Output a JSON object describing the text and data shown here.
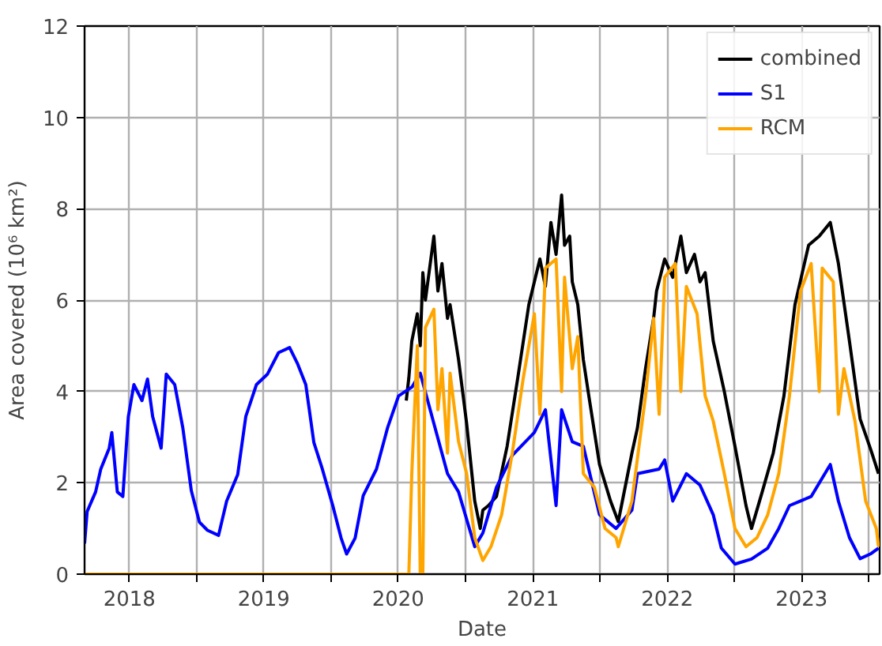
{
  "chart_data": {
    "type": "line",
    "xlabel": "Date",
    "ylabel": "Area covered (10⁶ km²)",
    "xlim": [
      "2017-09-01",
      "2023-08-01"
    ],
    "ylim": [
      0,
      12
    ],
    "yticks": [
      0,
      2,
      4,
      6,
      8,
      10,
      12
    ],
    "xticks": [
      "2018",
      {
        "value": "2018-07",
        "label": null
      },
      "2019",
      {
        "value": "2019-07",
        "label": null
      },
      "2020",
      {
        "value": "2020-07",
        "label": null
      },
      "2021",
      {
        "value": "2021-07",
        "label": null
      },
      "2022",
      {
        "value": "2022-07",
        "label": null
      },
      "2023",
      {
        "value": "2023-07",
        "label": null
      }
    ],
    "grid": true,
    "legend": "top right",
    "line_style": "solid",
    "marker": "none",
    "series": [
      {
        "name": "combined",
        "color": "#000000",
        "x": [
          "2020-01-23",
          "2020-01-30",
          "2020-02-07",
          "2020-02-22",
          "2020-03-01",
          "2020-03-08",
          "2020-03-15",
          "2020-04-07",
          "2020-04-18",
          "2020-04-29",
          "2020-05-14",
          "2020-05-21",
          "2020-06-13",
          "2020-07-05",
          "2020-07-27",
          "2020-08-11",
          "2020-08-18",
          "2020-09-02",
          "2020-09-24",
          "2020-10-23",
          "2020-11-21",
          "2020-12-21",
          "2021-01-05",
          "2021-01-20",
          "2021-02-04",
          "2021-02-19",
          "2021-03-05",
          "2021-03-20",
          "2021-03-28",
          "2021-04-11",
          "2021-04-18",
          "2021-05-03",
          "2021-05-18",
          "2021-06-02",
          "2021-07-01",
          "2021-07-31",
          "2021-08-21",
          "2021-09-27",
          "2021-10-12",
          "2021-11-03",
          "2021-11-25",
          "2021-12-03",
          "2021-12-25",
          "2022-01-16",
          "2022-02-07",
          "2022-02-22",
          "2022-03-16",
          "2022-03-31",
          "2022-04-14",
          "2022-05-06",
          "2022-06-05",
          "2022-07-04",
          "2022-08-03",
          "2022-08-18",
          "2022-09-16",
          "2022-10-16",
          "2022-11-14",
          "2022-12-14",
          "2023-01-20",
          "2023-02-18",
          "2023-03-20",
          "2023-04-11",
          "2023-05-11",
          "2023-06-09",
          "2023-07-09",
          "2023-07-29"
        ],
        "values": [
          3.8,
          4.3,
          5.1,
          5.7,
          5.0,
          6.6,
          6.0,
          7.4,
          6.2,
          6.8,
          5.6,
          5.9,
          4.7,
          3.3,
          1.6,
          1.0,
          1.4,
          1.5,
          1.7,
          2.8,
          4.3,
          5.9,
          6.4,
          6.9,
          6.3,
          7.7,
          7.0,
          8.3,
          7.2,
          7.4,
          6.4,
          5.9,
          4.7,
          3.9,
          2.4,
          1.6,
          1.15,
          2.65,
          3.2,
          4.5,
          5.6,
          6.2,
          6.9,
          6.5,
          7.4,
          6.6,
          7.0,
          6.4,
          6.6,
          5.1,
          4.0,
          2.8,
          1.5,
          1.0,
          1.8,
          2.65,
          3.9,
          5.9,
          7.2,
          7.4,
          7.7,
          6.8,
          5.1,
          3.4,
          2.7,
          2.2
        ]
      },
      {
        "name": "S1",
        "color": "#0000ff",
        "x": [
          "2017-09-01",
          "2017-09-08",
          "2017-10-01",
          "2017-10-15",
          "2017-11-07",
          "2017-11-14",
          "2017-11-29",
          "2017-12-14",
          "2017-12-29",
          "2018-01-13",
          "2018-02-04",
          "2018-02-19",
          "2018-03-05",
          "2018-03-28",
          "2018-04-11",
          "2018-05-04",
          "2018-05-26",
          "2018-06-18",
          "2018-07-10",
          "2018-08-01",
          "2018-08-31",
          "2018-09-22",
          "2018-10-22",
          "2018-11-13",
          "2018-12-12",
          "2019-01-11",
          "2019-02-10",
          "2019-03-12",
          "2019-04-03",
          "2019-04-25",
          "2019-05-17",
          "2019-06-09",
          "2019-07-08",
          "2019-07-30",
          "2019-08-14",
          "2019-09-06",
          "2019-09-28",
          "2019-11-03",
          "2019-12-03",
          "2020-01-02",
          "2020-02-08",
          "2020-03-01",
          "2020-04-07",
          "2020-05-14",
          "2020-06-13",
          "2020-07-27",
          "2020-08-18",
          "2020-09-24",
          "2020-11-06",
          "2021-01-05",
          "2021-02-04",
          "2021-03-05",
          "2021-03-20",
          "2021-04-18",
          "2021-05-18",
          "2021-07-01",
          "2021-08-15",
          "2021-09-27",
          "2021-10-12",
          "2021-12-10",
          "2021-12-25",
          "2022-01-16",
          "2022-02-22",
          "2022-03-31",
          "2022-05-06",
          "2022-05-28",
          "2022-07-04",
          "2022-08-18",
          "2022-10-01",
          "2022-10-31",
          "2022-11-29",
          "2023-01-27",
          "2023-03-20",
          "2023-04-11",
          "2023-05-11",
          "2023-06-09",
          "2023-07-09",
          "2023-07-29"
        ],
        "values": [
          0.67,
          1.37,
          1.8,
          2.3,
          2.76,
          3.1,
          1.8,
          1.7,
          3.45,
          4.15,
          3.8,
          4.27,
          3.45,
          2.76,
          4.38,
          4.15,
          3.2,
          1.83,
          1.14,
          0.96,
          0.85,
          1.6,
          2.18,
          3.45,
          4.15,
          4.38,
          4.85,
          4.96,
          4.6,
          4.15,
          2.88,
          2.3,
          1.48,
          0.79,
          0.44,
          0.79,
          1.72,
          2.3,
          3.2,
          3.9,
          4.1,
          4.4,
          3.3,
          2.2,
          1.8,
          0.6,
          0.9,
          1.9,
          2.6,
          3.1,
          3.6,
          1.5,
          3.6,
          2.9,
          2.8,
          1.3,
          1.0,
          1.4,
          2.2,
          2.3,
          2.5,
          1.6,
          2.2,
          1.95,
          1.3,
          0.57,
          0.22,
          0.33,
          0.57,
          1.0,
          1.5,
          1.7,
          2.4,
          1.6,
          0.8,
          0.34,
          0.45,
          0.57
        ]
      },
      {
        "name": "RCM",
        "color": "#ffa500",
        "x": [
          "2017-09-01",
          "2020-01-30",
          "2020-02-07",
          "2020-02-22",
          "2020-03-01",
          "2020-03-08",
          "2020-03-15",
          "2020-04-07",
          "2020-04-18",
          "2020-04-29",
          "2020-05-14",
          "2020-05-21",
          "2020-06-13",
          "2020-07-05",
          "2020-07-27",
          "2020-08-18",
          "2020-09-09",
          "2020-10-08",
          "2020-11-06",
          "2020-12-06",
          "2021-01-05",
          "2021-01-20",
          "2021-02-04",
          "2021-03-05",
          "2021-03-20",
          "2021-03-28",
          "2021-04-18",
          "2021-05-03",
          "2021-05-18",
          "2021-06-17",
          "2021-07-16",
          "2021-08-15",
          "2021-08-21",
          "2021-09-27",
          "2021-11-03",
          "2021-11-25",
          "2021-12-10",
          "2021-12-25",
          "2022-01-23",
          "2022-02-07",
          "2022-02-22",
          "2022-03-23",
          "2022-04-14",
          "2022-05-06",
          "2022-06-05",
          "2022-07-04",
          "2022-08-03",
          "2022-09-02",
          "2022-10-01",
          "2022-10-31",
          "2022-11-29",
          "2022-12-29",
          "2023-01-27",
          "2023-02-18",
          "2023-02-26",
          "2023-03-28",
          "2023-04-11",
          "2023-04-26",
          "2023-05-26",
          "2023-06-24",
          "2023-07-23",
          "2023-07-29"
        ],
        "values": [
          0,
          0,
          2.2,
          5.0,
          0,
          0,
          5.4,
          5.8,
          3.6,
          4.5,
          2.65,
          4.4,
          2.9,
          2.2,
          0.8,
          0.3,
          0.6,
          1.3,
          2.65,
          4.3,
          5.7,
          3.5,
          6.7,
          6.9,
          4.0,
          6.5,
          4.5,
          5.2,
          2.2,
          1.9,
          1.0,
          0.8,
          0.6,
          1.6,
          3.9,
          5.6,
          3.5,
          6.5,
          6.8,
          4.0,
          6.3,
          5.7,
          3.9,
          3.35,
          2.2,
          1.0,
          0.6,
          0.8,
          1.3,
          2.2,
          3.9,
          6.2,
          6.8,
          4.0,
          6.7,
          6.4,
          3.5,
          4.5,
          3.35,
          1.6,
          1.0,
          0.6
        ]
      }
    ]
  }
}
